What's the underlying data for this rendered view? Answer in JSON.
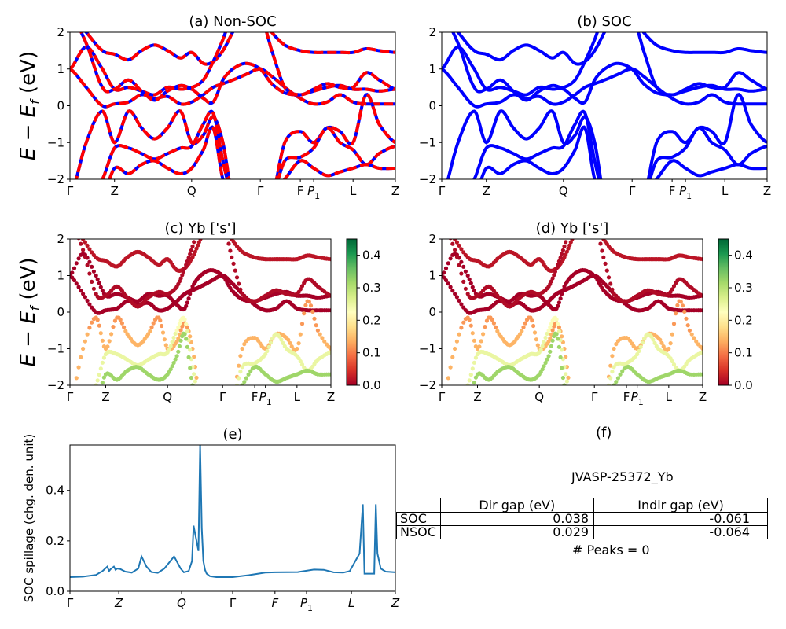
{
  "chart_data": [
    {
      "id": "a",
      "type": "line",
      "title": "(a) Non-SOC",
      "ylabel": "E − E_f (eV)",
      "ylim": [
        -2,
        2
      ],
      "yticks": [
        "2",
        "1",
        "0",
        "−1",
        "−2"
      ],
      "ytick_values": [
        2,
        1,
        0,
        -1,
        -2
      ],
      "xticks": [
        "Γ",
        "Z",
        "Q",
        "Γ",
        "F",
        "P1",
        "L",
        "Z"
      ],
      "xtick_positions": [
        0,
        0.137,
        0.374,
        0.585,
        0.708,
        0.749,
        0.87,
        1.0
      ],
      "style": "dashed-red-blue",
      "colors": {
        "primary": "#ff0000",
        "secondary": "#0000ff"
      },
      "series": "bands"
    },
    {
      "id": "b",
      "type": "line",
      "title": "(b) SOC",
      "ylim": [
        -2,
        2
      ],
      "yticks": [
        "2",
        "1",
        "0",
        "−1",
        "−2"
      ],
      "ytick_values": [
        2,
        1,
        0,
        -1,
        -2
      ],
      "xticks": [
        "Γ",
        "Z",
        "Q",
        "Γ",
        "F",
        "P1",
        "L",
        "Z"
      ],
      "xtick_positions": [
        0,
        0.137,
        0.374,
        0.585,
        0.708,
        0.749,
        0.87,
        1.0
      ],
      "style": "solid-blue",
      "colors": {
        "primary": "#0000ff"
      },
      "series": "bands"
    },
    {
      "id": "c",
      "type": "scatter",
      "title": "(c)  Yb ['s']",
      "ylabel": "E − E_f (eV)",
      "ylim": [
        -2,
        2
      ],
      "yticks": [
        "2",
        "1",
        "0",
        "−1",
        "−2"
      ],
      "ytick_values": [
        2,
        1,
        0,
        -1,
        -2
      ],
      "xticks": [
        "Γ",
        "Z",
        "Q",
        "Γ",
        "F",
        "P1",
        "L",
        "Z"
      ],
      "xtick_positions": [
        0,
        0.137,
        0.374,
        0.585,
        0.708,
        0.749,
        0.87,
        1.0
      ],
      "colorbar": {
        "cmap": "RdYlGn",
        "range": [
          0,
          0.45
        ],
        "ticks": [
          "0.0",
          "0.1",
          "0.2",
          "0.3",
          "0.4"
        ],
        "tick_values": [
          0,
          0.1,
          0.2,
          0.3,
          0.4
        ]
      },
      "series": "bands"
    },
    {
      "id": "d",
      "type": "scatter",
      "title": "(d) Yb ['s']",
      "ylim": [
        -2,
        2
      ],
      "yticks": [
        "2",
        "1",
        "0",
        "−1",
        "−2"
      ],
      "ytick_values": [
        2,
        1,
        0,
        -1,
        -2
      ],
      "xticks": [
        "Γ",
        "Z",
        "Q",
        "Γ",
        "F",
        "P1",
        "L",
        "Z"
      ],
      "xtick_positions": [
        0,
        0.137,
        0.374,
        0.585,
        0.708,
        0.749,
        0.87,
        1.0
      ],
      "colorbar": {
        "cmap": "RdYlGn",
        "range": [
          0,
          0.45
        ],
        "ticks": [
          "0.0",
          "0.1",
          "0.2",
          "0.3",
          "0.4"
        ],
        "tick_values": [
          0,
          0.1,
          0.2,
          0.3,
          0.4
        ]
      },
      "series": "bands"
    },
    {
      "id": "e",
      "type": "line",
      "title": "(e)",
      "ylabel": "SOC spillage (chg. den. unit)",
      "ylim": [
        0,
        0.58
      ],
      "yticks": [
        "0.0",
        "0.2",
        "0.4"
      ],
      "ytick_values": [
        0,
        0.2,
        0.4
      ],
      "xticks": [
        "Γ",
        "Z",
        "Q",
        "Γ",
        "F",
        "P1",
        "L",
        "Z"
      ],
      "xtick_positions": [
        0,
        0.15,
        0.343,
        0.5,
        0.63,
        0.727,
        0.865,
        1.0
      ],
      "color": "#1f77b4",
      "x": [
        0,
        0.04,
        0.08,
        0.1,
        0.115,
        0.12,
        0.125,
        0.135,
        0.14,
        0.145,
        0.155,
        0.17,
        0.19,
        0.21,
        0.22,
        0.235,
        0.25,
        0.27,
        0.29,
        0.32,
        0.34,
        0.35,
        0.365,
        0.375,
        0.38,
        0.395,
        0.4,
        0.405,
        0.41,
        0.415,
        0.42,
        0.43,
        0.45,
        0.5,
        0.55,
        0.6,
        0.63,
        0.7,
        0.75,
        0.78,
        0.81,
        0.84,
        0.86,
        0.89,
        0.9,
        0.905,
        0.91,
        0.935,
        0.94,
        0.945,
        0.955,
        0.97,
        1.0
      ],
      "y": [
        0.056,
        0.058,
        0.065,
        0.08,
        0.098,
        0.08,
        0.088,
        0.098,
        0.085,
        0.09,
        0.088,
        0.078,
        0.074,
        0.09,
        0.138,
        0.098,
        0.076,
        0.073,
        0.09,
        0.138,
        0.09,
        0.075,
        0.08,
        0.12,
        0.26,
        0.16,
        0.58,
        0.25,
        0.12,
        0.085,
        0.07,
        0.06,
        0.056,
        0.056,
        0.064,
        0.074,
        0.075,
        0.076,
        0.086,
        0.085,
        0.075,
        0.074,
        0.08,
        0.15,
        0.345,
        0.07,
        0.07,
        0.07,
        0.345,
        0.15,
        0.09,
        0.078,
        0.075
      ]
    }
  ],
  "table": {
    "title": "(f)",
    "material": "JVASP-25372_Yb",
    "columns": [
      "",
      "Dir gap (eV)",
      "Indir gap (eV)"
    ],
    "rows": [
      {
        "label": "SOC",
        "dir_gap": "0.038",
        "indir_gap": "-0.061"
      },
      {
        "label": "NSOC",
        "dir_gap": "0.029",
        "indir_gap": "-0.064"
      }
    ],
    "footer": "# Peaks = 0"
  },
  "bands": {
    "x": [
      0,
      0.05,
      0.1,
      0.137,
      0.18,
      0.22,
      0.26,
      0.3,
      0.34,
      0.374,
      0.41,
      0.44,
      0.47,
      0.5,
      0.54,
      0.585,
      0.62,
      0.66,
      0.708,
      0.749,
      0.79,
      0.83,
      0.87,
      0.91,
      0.95,
      1.0
    ],
    "lines": [
      {
        "y": [
          1.0,
          0.5,
          0.0,
          0.05,
          0.1,
          0.3,
          0.2,
          0.25,
          0.05,
          0.1,
          0.3,
          0.5,
          0.6,
          0.7,
          0.85,
          1.0,
          0.8,
          0.5,
          0.2,
          0.05,
          0.1,
          0.3,
          0.1,
          0.05,
          0.05,
          0.05
        ],
        "w": 0.0
      },
      {
        "y": [
          1.0,
          1.6,
          1.0,
          0.45,
          0.5,
          0.4,
          0.3,
          0.5,
          0.45,
          0.45,
          0.2,
          0.1,
          0.7,
          1.0,
          1.15,
          1.0,
          0.6,
          0.35,
          0.3,
          0.4,
          0.5,
          0.55,
          0.45,
          0.45,
          0.4,
          0.45
        ],
        "w": 0.0
      },
      {
        "y": [
          2.5,
          2.0,
          1.5,
          1.4,
          1.25,
          1.5,
          1.65,
          1.5,
          1.3,
          1.45,
          1.15,
          1.2,
          1.5,
          2.0,
          2.5,
          2.5,
          2.0,
          1.65,
          1.5,
          1.45,
          1.45,
          1.45,
          1.45,
          1.55,
          1.5,
          1.45
        ],
        "w": 0.02
      },
      {
        "y": [
          2.5,
          1.7,
          0.5,
          0.45,
          0.7,
          0.4,
          0.15,
          0.4,
          0.55,
          0.5,
          0.7,
          1.2,
          1.8,
          2.5,
          2.5,
          2.5,
          1.5,
          0.5,
          0.3,
          0.45,
          0.6,
          0.5,
          0.5,
          0.9,
          0.7,
          0.45
        ],
        "w": 0.01
      },
      {
        "y": [
          -2.5,
          -1.0,
          -0.15,
          -1.0,
          -0.15,
          -0.6,
          -0.9,
          -0.6,
          -0.15,
          -1.0,
          -0.8,
          -0.3,
          -1.0,
          -2.5,
          -2.5,
          -2.5,
          -2.5,
          -1.0,
          -0.7,
          -1.0,
          -0.6,
          -0.7,
          -1.0,
          0.3,
          -0.5,
          -1.0
        ],
        "w": 0.12
      },
      {
        "y": [
          -2.5,
          -2.5,
          -2.0,
          -1.15,
          -1.15,
          -1.3,
          -1.45,
          -1.3,
          -1.15,
          -1.1,
          -0.5,
          -0.2,
          -1.5,
          -2.5,
          -2.5,
          -2.5,
          -2.5,
          -1.5,
          -1.4,
          -1.15,
          -0.6,
          -1.0,
          -1.2,
          -1.6,
          -1.3,
          -1.1
        ],
        "w": 0.23
      },
      {
        "y": [
          -2.5,
          -2.5,
          -2.5,
          -1.7,
          -1.85,
          -1.6,
          -1.5,
          -1.7,
          -1.85,
          -1.7,
          -1.2,
          -0.6,
          -2.0,
          -2.5,
          -2.5,
          -2.5,
          -2.5,
          -2.0,
          -1.5,
          -1.7,
          -1.9,
          -1.8,
          -1.7,
          -1.6,
          -1.7,
          -1.7
        ],
        "w": 0.3
      }
    ]
  }
}
